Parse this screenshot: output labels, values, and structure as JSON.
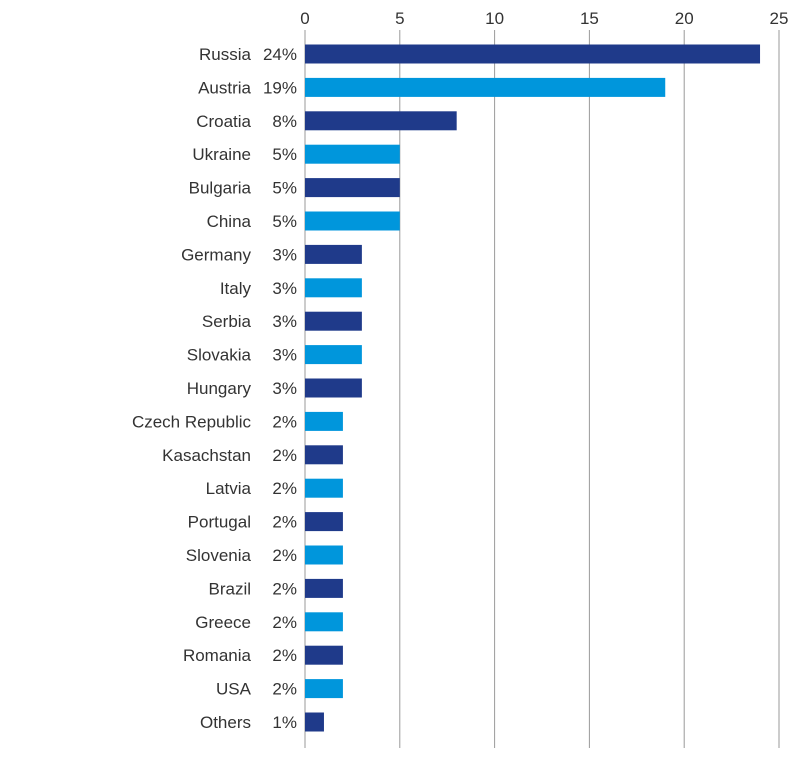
{
  "chart_data": {
    "type": "bar",
    "orientation": "horizontal",
    "categories": [
      "Russia",
      "Austria",
      "Croatia",
      "Ukraine",
      "Bulgaria",
      "China",
      "Germany",
      "Italy",
      "Serbia",
      "Slovakia",
      "Hungary",
      "Czech Republic",
      "Kasachstan",
      "Latvia",
      "Portugal",
      "Slovenia",
      "Brazil",
      "Greece",
      "Romania",
      "USA",
      "Others"
    ],
    "percent_labels": [
      "24%",
      "19%",
      "8%",
      "5%",
      "5%",
      "5%",
      "3%",
      "3%",
      "3%",
      "3%",
      "3%",
      "2%",
      "2%",
      "2%",
      "2%",
      "2%",
      "2%",
      "2%",
      "2%",
      "2%",
      "1%"
    ],
    "values": [
      24,
      19,
      8,
      5,
      5,
      5,
      3,
      3,
      3,
      3,
      3,
      2,
      2,
      2,
      2,
      2,
      2,
      2,
      2,
      2,
      1
    ],
    "xlim": [
      0,
      25
    ],
    "x_ticks": [
      "0",
      "5",
      "10",
      "15",
      "20",
      "25"
    ],
    "x_axis_position": "top",
    "grid": true,
    "colors": {
      "dark": "#1f3a8a",
      "light": "#0096dc",
      "grid": "#9a9a9a"
    }
  }
}
